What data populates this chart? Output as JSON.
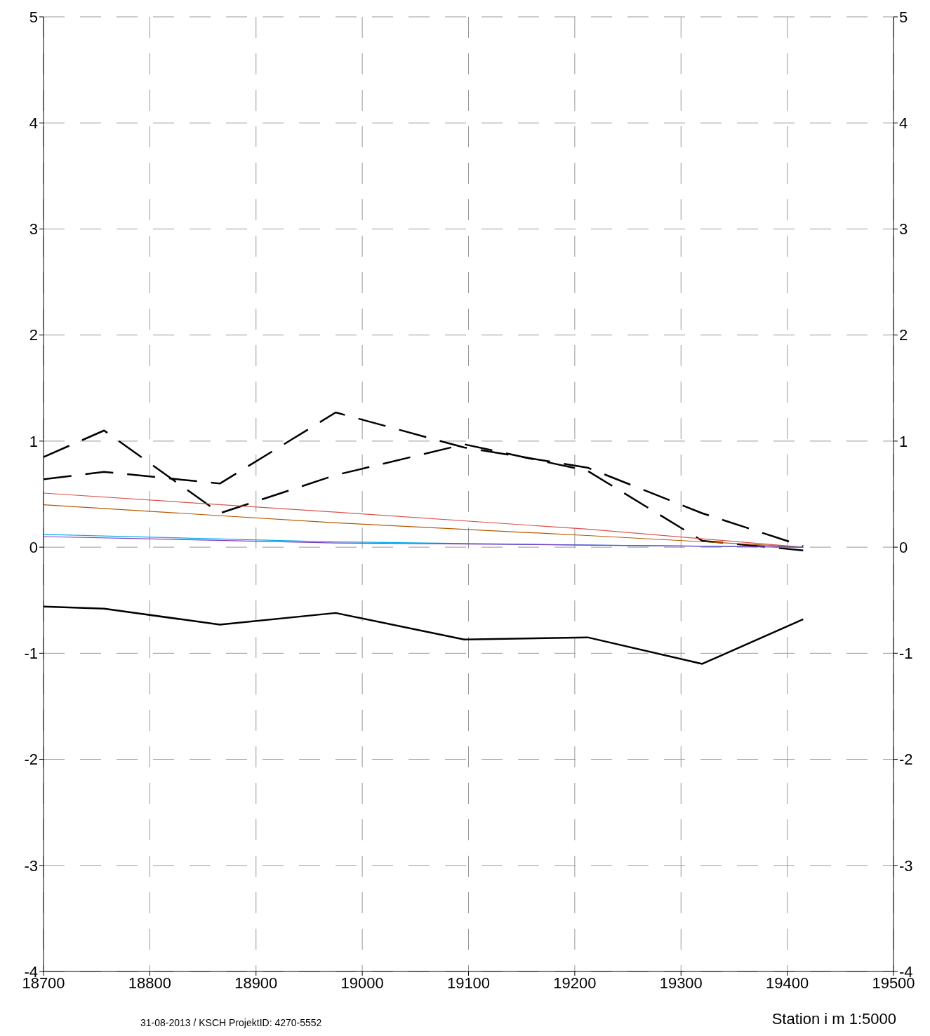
{
  "chart_data": {
    "type": "line",
    "xlabel": "Station i m 1:5000",
    "annotations": [
      "31-08-2013 / KSCH ProjektID: 4270-5552"
    ],
    "xlim": [
      18700,
      19500
    ],
    "xticks": [
      18700,
      18800,
      18900,
      19000,
      19100,
      19200,
      19300,
      19400,
      19500
    ],
    "ylim": [
      -4,
      5
    ],
    "yticks": [
      -4,
      -3,
      -2,
      -1,
      0,
      1,
      2,
      3,
      4,
      5
    ],
    "y2lim": [
      -4,
      5
    ],
    "y2ticks": [
      -4,
      -3,
      -2,
      -1,
      0,
      1,
      2,
      3,
      4,
      5
    ],
    "grid": true,
    "marker": "none",
    "series": [
      {
        "color": "#000000",
        "line_style": "solid",
        "x": [
          18700,
          18757,
          18866,
          18975,
          19096,
          19212,
          19320,
          19415
        ],
        "values": [
          -0.56,
          -0.58,
          -0.73,
          -0.62,
          -0.87,
          -0.85,
          -1.1,
          -0.68
        ]
      },
      {
        "color": "#000000",
        "line_style": "dashed",
        "x": [
          18700,
          18757,
          18866,
          18975,
          19096,
          19212,
          19320,
          19415
        ],
        "values": [
          0.85,
          1.1,
          0.32,
          0.68,
          0.97,
          0.72,
          0.06,
          -0.03
        ]
      },
      {
        "color": "#000000",
        "line_style": "dashed",
        "x": [
          18700,
          18757,
          18866,
          18975,
          19096,
          19212,
          19320,
          19415
        ],
        "values": [
          0.64,
          0.71,
          0.6,
          1.27,
          0.94,
          0.75,
          0.32,
          0.01
        ]
      },
      {
        "color": "#d9534f",
        "line_style": "solid",
        "x": [
          18700,
          18975,
          19212,
          19415
        ],
        "values": [
          0.51,
          0.33,
          0.17,
          0
        ]
      },
      {
        "color": "#b35900",
        "line_style": "solid",
        "x": [
          18700,
          18975,
          19212,
          19415
        ],
        "values": [
          0.4,
          0.23,
          0.11,
          0
        ]
      },
      {
        "color": "#00aaee",
        "line_style": "solid",
        "x": [
          18700,
          18975,
          19212,
          19415
        ],
        "values": [
          0.12,
          0.05,
          0.02,
          0
        ]
      },
      {
        "color": "#7a3fbf",
        "line_style": "solid",
        "x": [
          18700,
          18975,
          19212,
          19415
        ],
        "values": [
          0.1,
          0.04,
          0.02,
          0
        ]
      }
    ]
  }
}
